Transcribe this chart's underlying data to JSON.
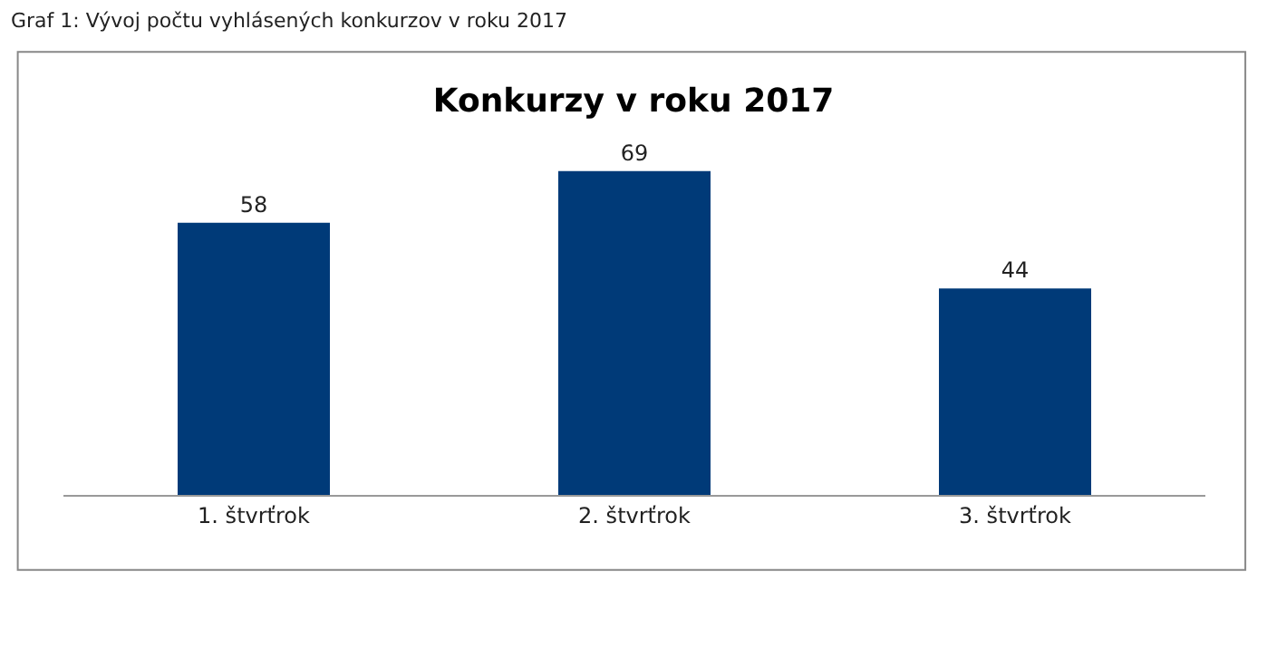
{
  "chart_data": {
    "type": "bar",
    "title": "Konkurzy v roku 2017",
    "annotations": [
      "Graf 1: Vývoj počtu vyhlásených konkurzov v roku 2017"
    ],
    "categories": [
      "1. štvrťrok",
      "2. štvrťrok",
      "3. štvrťrok"
    ],
    "values": [
      58,
      69,
      44
    ],
    "color": "#003a78",
    "data_labels": true,
    "grid": false,
    "legend": false
  }
}
